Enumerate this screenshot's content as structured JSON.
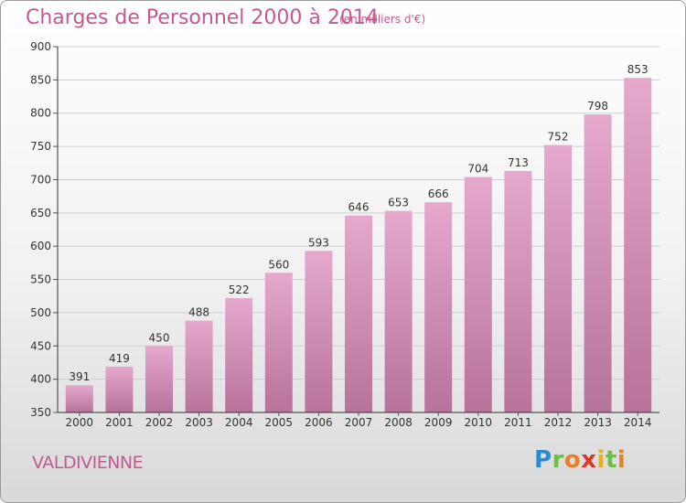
{
  "header": {
    "title": "Charges de Personnel 2000 à 2014",
    "subtitle": "(en milliers d'€)"
  },
  "footer": {
    "city": "VALDIVIENNE",
    "logo": "Proxiti"
  },
  "colors": {
    "bar_top": "#e6a8cd",
    "bar_bottom": "#b7739a",
    "title": "#c35a8f"
  },
  "chart_data": {
    "type": "bar",
    "title": "Charges de Personnel 2000 à 2014",
    "subtitle": "(en milliers d'€)",
    "categories": [
      "2000",
      "2001",
      "2002",
      "2003",
      "2004",
      "2005",
      "2006",
      "2007",
      "2008",
      "2009",
      "2010",
      "2011",
      "2012",
      "2013",
      "2014"
    ],
    "values": [
      391,
      419,
      450,
      488,
      522,
      560,
      593,
      646,
      653,
      666,
      704,
      713,
      752,
      798,
      853
    ],
    "ylim": [
      350,
      900
    ],
    "yticks": [
      350,
      400,
      450,
      500,
      550,
      600,
      650,
      700,
      750,
      800,
      850,
      900
    ],
    "grid": true
  }
}
